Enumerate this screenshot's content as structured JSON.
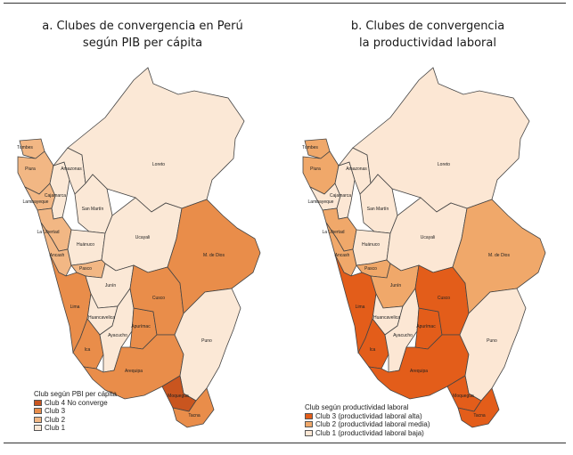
{
  "panels": [
    {
      "title_line1": "a. Clubes de convergencia en Perú",
      "title_line2": "según PIB per cápita",
      "legend": {
        "title": "Club según PBI per cápita",
        "items": [
          {
            "label": "Club 4  No converge",
            "color": "#c9551f"
          },
          {
            "label": "Club 3",
            "color": "#e98d4a"
          },
          {
            "label": "Club 2",
            "color": "#f2b784"
          },
          {
            "label": "Club 1",
            "color": "#fbe8d6"
          }
        ]
      }
    },
    {
      "title_line1": "b. Clubes de convergencia",
      "title_line2": "la productividad laboral",
      "legend": {
        "title": "Club según productividad laboral",
        "items": [
          {
            "label": "Club 3 (productividad laboral alta)",
            "color": "#e35d1a"
          },
          {
            "label": "Club 2 (productividad laboral media)",
            "color": "#f0a86a"
          },
          {
            "label": "Club 1 (productividad laboral baja)",
            "color": "#fce7d4"
          }
        ]
      }
    }
  ],
  "departments": [
    {
      "id": "tumbes",
      "name": "Tumbes",
      "club_a": 2,
      "club_b": 2
    },
    {
      "id": "piura",
      "name": "Piura",
      "club_a": 2,
      "club_b": 2
    },
    {
      "id": "lambayeque",
      "name": "Lambayeque",
      "club_a": 2,
      "club_b": 1
    },
    {
      "id": "cajamarca",
      "name": "Cajamarca",
      "club_a": 1,
      "club_b": 1
    },
    {
      "id": "amazonas",
      "name": "Amazonas",
      "club_a": 1,
      "club_b": 1
    },
    {
      "id": "loreto",
      "name": "Loreto",
      "club_a": 1,
      "club_b": 1
    },
    {
      "id": "la-libertad",
      "name": "La Libertad",
      "club_a": 2,
      "club_b": 2
    },
    {
      "id": "san-martin",
      "name": "San Martín",
      "club_a": 1,
      "club_b": 1
    },
    {
      "id": "ancash",
      "name": "Ancash",
      "club_a": 2,
      "club_b": 2
    },
    {
      "id": "huanuco",
      "name": "Huánuco",
      "club_a": 1,
      "club_b": 1
    },
    {
      "id": "ucayali",
      "name": "Ucayali",
      "club_a": 1,
      "club_b": 1
    },
    {
      "id": "pasco",
      "name": "Pasco",
      "club_a": 2,
      "club_b": 2
    },
    {
      "id": "lima",
      "name": "Lima",
      "club_a": 3,
      "club_b": 3
    },
    {
      "id": "junin",
      "name": "Junín",
      "club_a": 1,
      "club_b": 2
    },
    {
      "id": "huancavelica",
      "name": "Huancavelica",
      "club_a": 1,
      "club_b": 1
    },
    {
      "id": "ica",
      "name": "Ica",
      "club_a": 3,
      "club_b": 3
    },
    {
      "id": "ayacucho",
      "name": "Ayacucho",
      "club_a": 1,
      "club_b": 1
    },
    {
      "id": "apurimac",
      "name": "Apurímac",
      "club_a": 3,
      "club_b": 3
    },
    {
      "id": "cusco",
      "name": "Cusco",
      "club_a": 3,
      "club_b": 3
    },
    {
      "id": "madre-de-dios",
      "name": "M. de Dios",
      "club_a": 3,
      "club_b": 2
    },
    {
      "id": "arequipa",
      "name": "Arequipa",
      "club_a": 3,
      "club_b": 3
    },
    {
      "id": "puno",
      "name": "Puno",
      "club_a": 1,
      "club_b": 1
    },
    {
      "id": "moquegua",
      "name": "Moquegua",
      "club_a": 4,
      "club_b": 3
    },
    {
      "id": "tacna",
      "name": "Tacna",
      "club_a": 3,
      "club_b": 3
    }
  ]
}
